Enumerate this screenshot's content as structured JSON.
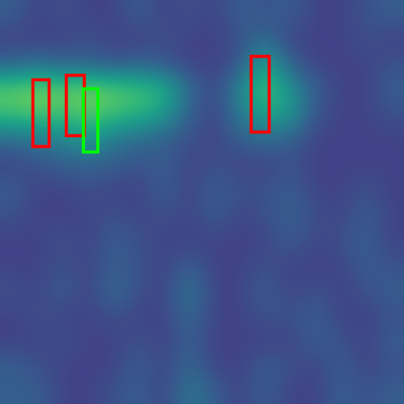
{
  "chart_data": {
    "type": "heatmap",
    "tick_labels": false,
    "xlim": [
      0,
      448
    ],
    "ylim": [
      448,
      0
    ],
    "cell_range": [
      0,
      1
    ],
    "cells": [
      [
        0.3,
        0.2,
        0.25,
        0.2,
        0.2,
        0.3,
        0.2,
        0.25,
        0.2,
        0.3,
        0.25,
        0.3,
        0.2,
        0.2,
        0.25,
        0.3
      ],
      [
        0.2,
        0.2,
        0.2,
        0.25,
        0.2,
        0.2,
        0.25,
        0.2,
        0.2,
        0.25,
        0.35,
        0.2,
        0.2,
        0.2,
        0.25,
        0.2
      ],
      [
        0.3,
        0.35,
        0.3,
        0.3,
        0.25,
        0.3,
        0.25,
        0.2,
        0.2,
        0.25,
        0.6,
        0.3,
        0.2,
        0.2,
        0.2,
        0.25
      ],
      [
        0.75,
        0.8,
        0.75,
        0.8,
        0.75,
        0.7,
        0.65,
        0.35,
        0.2,
        0.45,
        0.75,
        0.5,
        0.3,
        0.2,
        0.2,
        0.3
      ],
      [
        0.7,
        0.75,
        0.7,
        0.75,
        0.7,
        0.65,
        0.55,
        0.3,
        0.2,
        0.4,
        0.6,
        0.55,
        0.25,
        0.2,
        0.2,
        0.25
      ],
      [
        0.35,
        0.4,
        0.45,
        0.55,
        0.4,
        0.35,
        0.3,
        0.25,
        0.2,
        0.3,
        0.35,
        0.3,
        0.2,
        0.2,
        0.2,
        0.2
      ],
      [
        0.2,
        0.25,
        0.3,
        0.3,
        0.3,
        0.25,
        0.3,
        0.2,
        0.25,
        0.2,
        0.2,
        0.25,
        0.2,
        0.2,
        0.2,
        0.2
      ],
      [
        0.3,
        0.2,
        0.2,
        0.25,
        0.2,
        0.2,
        0.3,
        0.2,
        0.3,
        0.25,
        0.25,
        0.3,
        0.2,
        0.2,
        0.25,
        0.2
      ],
      [
        0.25,
        0.2,
        0.2,
        0.2,
        0.25,
        0.2,
        0.25,
        0.2,
        0.3,
        0.2,
        0.25,
        0.3,
        0.25,
        0.2,
        0.3,
        0.2
      ],
      [
        0.2,
        0.2,
        0.25,
        0.2,
        0.3,
        0.25,
        0.2,
        0.2,
        0.2,
        0.2,
        0.2,
        0.3,
        0.2,
        0.25,
        0.3,
        0.2
      ],
      [
        0.2,
        0.2,
        0.25,
        0.2,
        0.3,
        0.25,
        0.2,
        0.3,
        0.2,
        0.2,
        0.25,
        0.2,
        0.2,
        0.2,
        0.3,
        0.25
      ],
      [
        0.25,
        0.2,
        0.3,
        0.2,
        0.35,
        0.25,
        0.2,
        0.4,
        0.2,
        0.2,
        0.3,
        0.2,
        0.25,
        0.2,
        0.25,
        0.3
      ],
      [
        0.2,
        0.25,
        0.2,
        0.2,
        0.25,
        0.2,
        0.2,
        0.35,
        0.2,
        0.2,
        0.25,
        0.25,
        0.3,
        0.2,
        0.2,
        0.25
      ],
      [
        0.2,
        0.2,
        0.25,
        0.2,
        0.2,
        0.25,
        0.2,
        0.3,
        0.2,
        0.2,
        0.2,
        0.2,
        0.3,
        0.25,
        0.2,
        0.3
      ],
      [
        0.3,
        0.25,
        0.2,
        0.2,
        0.2,
        0.3,
        0.2,
        0.35,
        0.2,
        0.2,
        0.3,
        0.25,
        0.2,
        0.3,
        0.2,
        0.25
      ],
      [
        0.3,
        0.3,
        0.2,
        0.2,
        0.25,
        0.3,
        0.2,
        0.4,
        0.3,
        0.2,
        0.3,
        0.2,
        0.2,
        0.3,
        0.25,
        0.3
      ]
    ],
    "boxes": [
      {
        "x0": 36,
        "y0": 88,
        "x1": 54,
        "y1": 162,
        "color": "#ff0000"
      },
      {
        "x0": 73,
        "y0": 83,
        "x1": 93,
        "y1": 150,
        "color": "#ff0000"
      },
      {
        "x0": 278,
        "y0": 62,
        "x1": 298,
        "y1": 146,
        "color": "#ff0000"
      },
      {
        "x0": 92,
        "y0": 98,
        "x1": 108,
        "y1": 168,
        "color": "#00ff00"
      }
    ]
  }
}
